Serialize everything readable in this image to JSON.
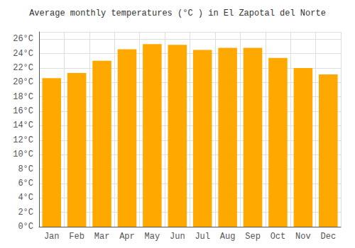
{
  "chart_data": {
    "type": "bar",
    "title": "Average monthly temperatures (°C ) in El Zapotal del Norte",
    "categories": [
      "Jan",
      "Feb",
      "Mar",
      "Apr",
      "May",
      "Jun",
      "Jul",
      "Aug",
      "Sep",
      "Oct",
      "Nov",
      "Dec"
    ],
    "values": [
      20.6,
      21.3,
      23.0,
      24.6,
      25.3,
      25.2,
      24.5,
      24.8,
      24.8,
      23.4,
      22.0,
      21.1
    ],
    "color": "#FFA800",
    "ylim": [
      0,
      27
    ],
    "yticks": [
      {
        "value": 0,
        "label": "0°C"
      },
      {
        "value": 2,
        "label": "2°C"
      },
      {
        "value": 4,
        "label": "4°C"
      },
      {
        "value": 6,
        "label": "6°C"
      },
      {
        "value": 8,
        "label": "8°C"
      },
      {
        "value": 10,
        "label": "10°C"
      },
      {
        "value": 12,
        "label": "12°C"
      },
      {
        "value": 14,
        "label": "14°C"
      },
      {
        "value": 16,
        "label": "16°C"
      },
      {
        "value": 18,
        "label": "18°C"
      },
      {
        "value": 20,
        "label": "20°C"
      },
      {
        "value": 22,
        "label": "22°C"
      },
      {
        "value": 24,
        "label": "24°C"
      },
      {
        "value": 26,
        "label": "26°C"
      }
    ],
    "grid": true
  }
}
